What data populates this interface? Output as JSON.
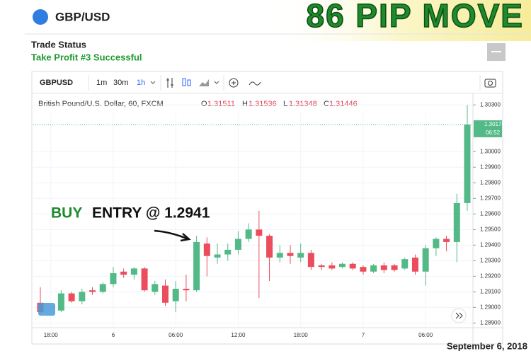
{
  "header": {
    "symbol_title": "GBP/USD",
    "banner": "86 PIP MOVE",
    "status_title": "Trade Status",
    "status_text": "Take Profit #3 Successful",
    "date": "September 6, 2018"
  },
  "toolbar": {
    "symbol": "GBPUSD",
    "intervals": [
      "1m",
      "30m",
      "1h"
    ]
  },
  "legend": {
    "name": "British Pound/U.S. Dollar, 60, FXCM",
    "o_key": "O",
    "o": "1.31511",
    "h_key": "H",
    "h": "1.31536",
    "l_key": "L",
    "l": "1.31348",
    "c_key": "C",
    "c": "1.31446"
  },
  "chart_data": {
    "type": "candlestick",
    "annotation_buy": "BUY",
    "annotation_rest": "ENTRY @ 1.2941",
    "price_label": "1.30174",
    "countdown": "06:52",
    "up_color": "#53b987",
    "down_color": "#eb4d5c",
    "categories": [
      null,
      "18:00",
      null,
      null,
      null,
      null,
      null,
      "6",
      null,
      null,
      null,
      null,
      null,
      "06:00",
      null,
      null,
      null,
      null,
      null,
      "12:00",
      null,
      null,
      null,
      null,
      null,
      "18:00",
      null,
      null,
      null,
      null,
      null,
      "7",
      null,
      null,
      null,
      null,
      null,
      "06:00",
      null,
      null,
      null,
      null
    ],
    "open": [
      1.2903,
      null,
      1.2898,
      1.2909,
      1.2904,
      1.2911,
      1.291,
      1.2915,
      1.2923,
      1.2921,
      1.2925,
      1.291,
      1.2914,
      1.2904,
      1.2912,
      1.2911,
      1.2941,
      1.2932,
      1.2934,
      1.2937,
      1.2944,
      1.295,
      1.2946,
      1.2932,
      1.2935,
      1.2932,
      1.2935,
      1.2927,
      1.2927,
      1.2926,
      1.2928,
      1.2926,
      1.2923,
      1.2927,
      1.2927,
      1.2925,
      1.2932,
      1.2923,
      1.2938,
      1.2944,
      1.2942,
      1.2967
    ],
    "high": [
      1.2913,
      null,
      1.2911,
      1.291,
      1.2912,
      1.2913,
      1.2916,
      1.2926,
      1.2925,
      1.2926,
      1.2926,
      1.2917,
      1.2918,
      1.2917,
      1.2921,
      1.2946,
      1.2945,
      1.2941,
      1.2941,
      1.2949,
      1.2954,
      1.2962,
      1.2947,
      1.294,
      1.294,
      1.2941,
      1.2937,
      1.2928,
      1.2929,
      1.2929,
      1.2929,
      1.2927,
      1.2928,
      1.2929,
      1.2928,
      1.2932,
      1.2934,
      1.294,
      1.2945,
      1.2946,
      1.2973,
      1.303
    ],
    "low": [
      1.2896,
      null,
      1.2897,
      1.2903,
      1.2902,
      1.2908,
      1.2909,
      1.2913,
      1.2919,
      1.2918,
      1.291,
      1.2908,
      1.2901,
      1.2897,
      1.2904,
      1.291,
      1.292,
      1.2928,
      1.293,
      1.2934,
      1.2942,
      1.2906,
      1.2917,
      1.2929,
      1.2928,
      1.2929,
      1.2924,
      1.2924,
      1.2924,
      1.2925,
      1.2924,
      1.2921,
      1.2922,
      1.2922,
      1.2923,
      1.2924,
      1.2921,
      1.2914,
      1.2933,
      1.2936,
      1.2929,
      1.2962
    ],
    "close": [
      1.2897,
      null,
      1.2909,
      1.2904,
      1.291,
      1.291,
      1.2915,
      1.2922,
      1.2921,
      1.2925,
      1.2911,
      1.2915,
      1.2903,
      1.2912,
      1.2911,
      1.2942,
      1.2933,
      1.2934,
      1.2937,
      1.2944,
      1.295,
      1.2946,
      1.2932,
      1.2935,
      1.2933,
      1.2935,
      1.2926,
      1.2926,
      1.2925,
      1.2928,
      1.2925,
      1.2923,
      1.2927,
      1.2924,
      1.2924,
      1.2931,
      1.2923,
      1.2938,
      1.2944,
      1.2942,
      1.2967,
      1.30174
    ],
    "ylim": [
      1.2887,
      1.3036
    ],
    "yticks": [
      {
        "value": 1.303,
        "label": "1.30300"
      },
      {
        "value": 1.3,
        "label": "1.30000"
      },
      {
        "value": 1.299,
        "label": "1.29900"
      },
      {
        "value": 1.298,
        "label": "1.29800"
      },
      {
        "value": 1.297,
        "label": "1.29700"
      },
      {
        "value": 1.296,
        "label": "1.29600"
      },
      {
        "value": 1.295,
        "label": "1.29500"
      },
      {
        "value": 1.294,
        "label": "1.29400"
      },
      {
        "value": 1.293,
        "label": "1.29300"
      },
      {
        "value": 1.292,
        "label": "1.29200"
      },
      {
        "value": 1.291,
        "label": "1.29100"
      },
      {
        "value": 1.29,
        "label": "1.29000"
      },
      {
        "value": 1.289,
        "label": "1.28900"
      }
    ],
    "grid": true
  }
}
